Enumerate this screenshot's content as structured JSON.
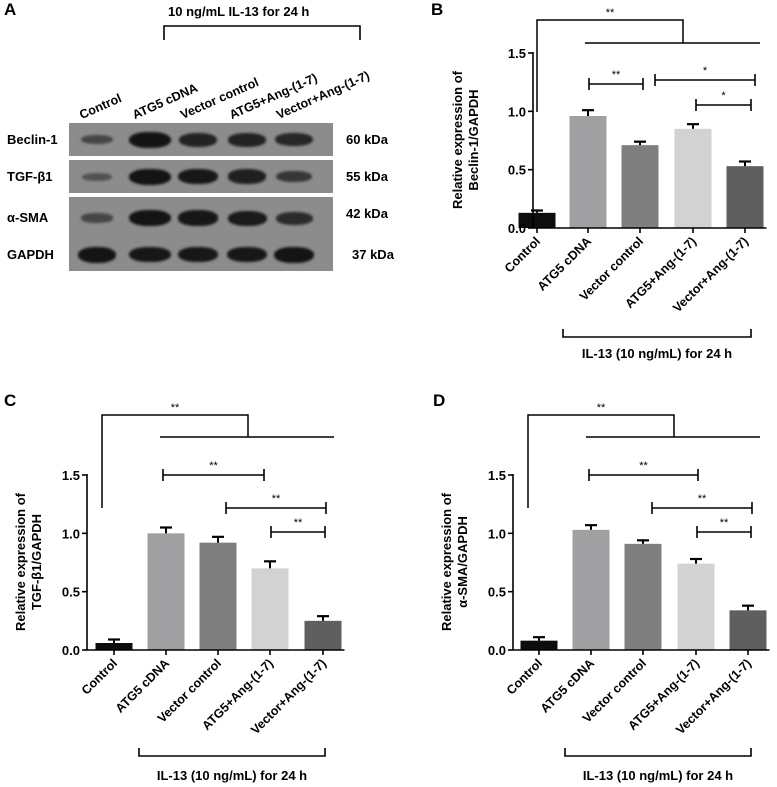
{
  "panels": {
    "A": {
      "letter": "A",
      "treatment_label": "10 ng/mL IL-13 for 24 h",
      "lanes": [
        "Control",
        "ATG5 cDNA",
        "Vector control",
        "ATG5+Ang-(1-7)",
        "Vector+Ang-(1-7)"
      ],
      "rows": [
        {
          "protein": "Beclin-1",
          "kda": "60 kDa",
          "band_intensity": [
            0.35,
            1.0,
            0.8,
            0.8,
            0.75
          ]
        },
        {
          "protein": "TGF-β1",
          "kda": "55 kDa",
          "band_intensity": [
            0.2,
            1.0,
            0.95,
            0.85,
            0.55
          ]
        },
        {
          "protein": "α-SMA",
          "kda": "42 kDa",
          "band_intensity": [
            0.35,
            1.0,
            0.95,
            0.9,
            0.7
          ]
        },
        {
          "protein": "GAPDH",
          "kda": "37 kDa",
          "band_intensity": [
            1.0,
            0.95,
            0.95,
            0.95,
            1.0
          ]
        }
      ]
    },
    "B": {
      "letter": "B"
    },
    "C": {
      "letter": "C"
    },
    "D": {
      "letter": "D"
    }
  },
  "colors": {
    "control": "#0d0d0d",
    "atg5_cdna": "#a0a0a2",
    "vector_control": "#7f7f7f",
    "atg5_ang": "#d2d2d2",
    "vector_ang": "#5f5f5f",
    "blot_bg": "#8c8c8c",
    "axis": "#000000"
  },
  "chart_data": [
    {
      "panel": "B",
      "type": "bar",
      "title": "",
      "ylabel": "Relative expression of Beclin-1/GAPDH",
      "ylabel_lines": [
        "Relative expression of",
        "Beclin-1/GAPDH"
      ],
      "xlabel": "IL-13 (10 ng/mL) for 24 h",
      "categories": [
        "Control",
        "ATG5 cDNA",
        "Vector control",
        "ATG5+Ang-(1-7)",
        "Vector+Ang-(1-7)"
      ],
      "values": [
        0.13,
        0.96,
        0.71,
        0.85,
        0.53
      ],
      "errors": [
        0.02,
        0.05,
        0.03,
        0.04,
        0.04
      ],
      "ylim": [
        0,
        1.5
      ],
      "yticks": [
        "0.0",
        "0.5",
        "1.0",
        "1.5"
      ],
      "significance": [
        {
          "from": "Control",
          "to": "IL-13 groups",
          "label": "**"
        },
        {
          "from": "ATG5 cDNA",
          "to": "Vector control",
          "label": "**"
        },
        {
          "from": "Vector control",
          "to": "Vector+Ang-(1-7)",
          "label": "*"
        },
        {
          "from": "ATG5+Ang-(1-7)",
          "to": "Vector+Ang-(1-7)",
          "label": "*"
        }
      ]
    },
    {
      "panel": "C",
      "type": "bar",
      "title": "",
      "ylabel": "Relative expression of TGF-β1/GAPDH",
      "ylabel_lines": [
        "Relative expression of",
        "TGF-β1/GAPDH"
      ],
      "xlabel": "IL-13 (10 ng/mL) for 24 h",
      "categories": [
        "Control",
        "ATG5 cDNA",
        "Vector control",
        "ATG5+Ang-(1-7)",
        "Vector+Ang-(1-7)"
      ],
      "values": [
        0.06,
        1.0,
        0.92,
        0.7,
        0.25
      ],
      "errors": [
        0.03,
        0.05,
        0.05,
        0.06,
        0.04
      ],
      "ylim": [
        0,
        1.5
      ],
      "yticks": [
        "0.0",
        "0.5",
        "1.0",
        "1.5"
      ],
      "significance": [
        {
          "from": "Control",
          "to": "IL-13 groups",
          "label": "**"
        },
        {
          "from": "ATG5 cDNA",
          "to": "ATG5+Ang-(1-7)",
          "label": "**"
        },
        {
          "from": "Vector control",
          "to": "Vector+Ang-(1-7)",
          "label": "**"
        },
        {
          "from": "ATG5+Ang-(1-7)",
          "to": "Vector+Ang-(1-7)",
          "label": "**"
        }
      ]
    },
    {
      "panel": "D",
      "type": "bar",
      "title": "",
      "ylabel": "Relative expression of α-SMA/GAPDH",
      "ylabel_lines": [
        "Relative expression of",
        "α-SMA/GAPDH"
      ],
      "xlabel": "IL-13 (10 ng/mL) for 24 h",
      "categories": [
        "Control",
        "ATG5 cDNA",
        "Vector control",
        "ATG5+Ang-(1-7)",
        "Vector+Ang-(1-7)"
      ],
      "values": [
        0.08,
        1.03,
        0.91,
        0.74,
        0.34
      ],
      "errors": [
        0.03,
        0.04,
        0.03,
        0.04,
        0.04
      ],
      "ylim": [
        0,
        1.5
      ],
      "yticks": [
        "0.0",
        "0.5",
        "1.0",
        "1.5"
      ],
      "significance": [
        {
          "from": "Control",
          "to": "IL-13 groups",
          "label": "**"
        },
        {
          "from": "ATG5 cDNA",
          "to": "ATG5+Ang-(1-7)",
          "label": "**"
        },
        {
          "from": "Vector control",
          "to": "Vector+Ang-(1-7)",
          "label": "**"
        },
        {
          "from": "ATG5+Ang-(1-7)",
          "to": "Vector+Ang-(1-7)",
          "label": "**"
        }
      ]
    }
  ]
}
